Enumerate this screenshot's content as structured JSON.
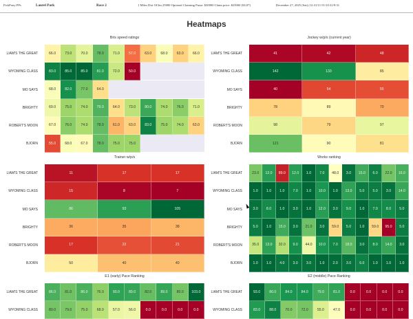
{
  "header": {
    "app": "PickPony PPs",
    "track": "Laurel Park",
    "race": "Race 2",
    "description": "1 Miles Dirt OClm 25000 Optional Claiming Purse: $30000 Claim price: $25000 (94.07)",
    "date": "December 27, 2025 (Sat) (12:31/11:51/10:31/9:31"
  },
  "page_title": "Heatmaps",
  "horses": [
    "LIAM'S THE GREAT",
    "WYOMING CLASS",
    "MO SAYS",
    "BRIGHTY",
    "ROBERT'S MOON",
    "BJORN"
  ],
  "chart_data": [
    {
      "id": "bris",
      "type": "heatmap",
      "title": "Bris speed ratings",
      "rows": [
        "LIAM'S THE GREAT",
        "WYOMING CLASS",
        "MO SAYS",
        "BRIGHTY",
        "ROBERT'S MOON",
        "BJORN"
      ],
      "values": [
        [
          66.0,
          73.0,
          70.0,
          78.0,
          71.0,
          57.0,
          63.0,
          68.0,
          63.0,
          66.0
        ],
        [
          83.0,
          85.0,
          85.0,
          81.0,
          72.0,
          50.0,
          null,
          null,
          null,
          null
        ],
        [
          68.0,
          82.0,
          77.0,
          64.0,
          null,
          null,
          null,
          null,
          null,
          null
        ],
        [
          69.0,
          75.0,
          74.0,
          79.0,
          64.0,
          73.0,
          80.0,
          74.0,
          76.0,
          71.0
        ],
        [
          67.0,
          76.0,
          74.0,
          78.0,
          61.0,
          63.0,
          83.0,
          75.0,
          74.0,
          63.0
        ],
        [
          55.0,
          68.0,
          67.0,
          78.0,
          75.0,
          75.0,
          null,
          null,
          null,
          null
        ]
      ],
      "format": "decimal",
      "scale": "higher-green",
      "vmin": 50,
      "vmax": 85
    },
    {
      "id": "jockey",
      "type": "heatmap",
      "title": "Jockey w/p/s (current year)",
      "rows": [
        "LIAM'S THE GREAT",
        "WYOMING CLASS",
        "MO SAYS",
        "BRIGHTY",
        "ROBERT'S MOON",
        "BJORN"
      ],
      "values": [
        [
          41,
          42,
          48
        ],
        [
          142,
          133,
          85
        ],
        [
          40,
          54,
          55
        ],
        [
          78,
          89,
          70
        ],
        [
          98,
          79,
          97
        ],
        [
          121,
          90,
          81
        ]
      ],
      "format": "integer",
      "scale": "higher-green",
      "vmin": 40,
      "vmax": 142
    },
    {
      "id": "trainer",
      "type": "heatmap",
      "title": "Trainer w/p/s",
      "rows": [
        "LIAM'S THE GREAT",
        "WYOMING CLASS",
        "MO SAYS",
        "BRIGHTY",
        "ROBERT'S MOON",
        "BJORN"
      ],
      "values": [
        [
          11,
          17,
          17
        ],
        [
          15,
          8,
          7
        ],
        [
          86,
          93,
          105
        ],
        [
          36,
          35,
          38
        ],
        [
          17,
          22,
          21
        ],
        [
          50,
          40,
          40
        ]
      ],
      "format": "integer",
      "scale": "higher-green",
      "vmin": 7,
      "vmax": 105
    },
    {
      "id": "works",
      "type": "heatmap",
      "title": "Works ranking",
      "rows": [
        "LIAM'S THE GREAT",
        "WYOMING CLASS",
        "MO SAYS",
        "BRIGHTY",
        "ROBERT'S MOON",
        "BJORN"
      ],
      "values": [
        [
          23.0,
          12.0,
          89.0,
          12.0,
          1.0,
          7.0,
          48.0,
          3.0,
          15.0,
          6.0,
          22.0,
          16.0
        ],
        [
          1.0,
          1.0,
          1.0,
          7.0,
          1.0,
          10.0,
          1.0,
          13.0,
          5.0,
          5.0,
          3.0,
          14.0
        ],
        [
          3.0,
          8.0,
          1.0,
          3.0,
          1.0,
          12.0,
          3.0,
          9.0,
          1.0,
          7.0,
          8.0,
          5.0
        ],
        [
          5.0,
          1.0,
          15.0,
          3.0,
          21.0,
          3.0,
          59.0,
          5.0,
          1.0,
          59.0,
          95.0,
          5.0
        ],
        [
          35.0,
          13.0,
          32.0,
          9.0,
          44.0,
          10.0,
          7.0,
          18.0,
          3.0,
          8.0,
          14.0,
          3.0
        ],
        [
          1.0,
          1.0,
          4.0,
          3.0,
          3.0,
          1.0,
          2.0,
          3.0,
          6.0,
          1.0,
          1.0,
          1.0
        ]
      ],
      "format": "decimal",
      "scale": "lower-green",
      "vmin": 1,
      "vmax": 95
    },
    {
      "id": "e1",
      "type": "heatmap",
      "title": "E1 (early) Pace Ranking",
      "rows": [
        "LIAM'S THE GREAT",
        "WYOMING CLASS"
      ],
      "values": [
        [
          86.0,
          81.0,
          86.0,
          76.0,
          90.0,
          89.0,
          82.0,
          89.0,
          80.0,
          103.0
        ],
        [
          80.0,
          79.0,
          75.0,
          68.0,
          57.0,
          56.0,
          0.0,
          0.0,
          0.0,
          0.0
        ]
      ],
      "format": "decimal",
      "scale": "higher-green",
      "vmin": 0,
      "vmax": 103
    },
    {
      "id": "e2",
      "type": "heatmap",
      "title": "E2 (middle) Pace Ranking",
      "rows": [
        "LIAM'S THE GREAT",
        "WYOMING CLASS"
      ],
      "values": [
        [
          93.0,
          80.0,
          84.0,
          84.0,
          79.0,
          81.0,
          0.0,
          0.0,
          0.0,
          0.0
        ],
        [
          83.0,
          88.0,
          70.0,
          72.0,
          55.0,
          47.0,
          0.0,
          0.0,
          0.0,
          0.0
        ]
      ],
      "format": "decimal",
      "scale": "higher-green",
      "vmin": 0,
      "vmax": 93
    }
  ]
}
